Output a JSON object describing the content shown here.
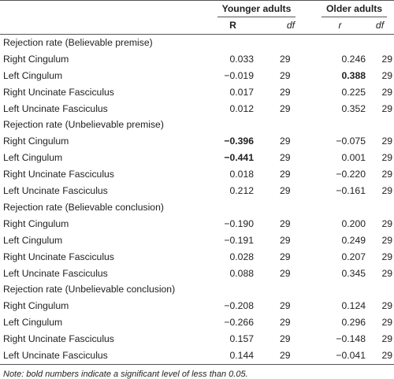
{
  "header": {
    "group_younger": "Younger adults",
    "group_older": "Older adults",
    "sub_r_upper": "R",
    "sub_df_1": "df",
    "sub_r_lower": "r",
    "sub_df_2": "df"
  },
  "sections": [
    {
      "title": "Rejection rate (Believable premise)",
      "rows": [
        {
          "label": "Right Cingulum",
          "y_r": "0.033",
          "y_df": "29",
          "o_r": "0.246",
          "o_df": "29",
          "y_bold": false,
          "o_bold": false
        },
        {
          "label": "Left Cingulum",
          "y_r": "−0.019",
          "y_df": "29",
          "o_r": "0.388",
          "o_df": "29",
          "y_bold": false,
          "o_bold": true
        },
        {
          "label": "Right Uncinate Fasciculus",
          "y_r": "0.017",
          "y_df": "29",
          "o_r": "0.225",
          "o_df": "29",
          "y_bold": false,
          "o_bold": false
        },
        {
          "label": "Left Uncinate Fasciculus",
          "y_r": "0.012",
          "y_df": "29",
          "o_r": "0.352",
          "o_df": "29",
          "y_bold": false,
          "o_bold": false
        }
      ]
    },
    {
      "title": "Rejection rate (Unbelievable premise)",
      "rows": [
        {
          "label": "Right Cingulum",
          "y_r": "−0.396",
          "y_df": "29",
          "o_r": "−0.075",
          "o_df": "29",
          "y_bold": true,
          "o_bold": false
        },
        {
          "label": "Left Cingulum",
          "y_r": "−0.441",
          "y_df": "29",
          "o_r": "0.001",
          "o_df": "29",
          "y_bold": true,
          "o_bold": false
        },
        {
          "label": "Right Uncinate Fasciculus",
          "y_r": "0.018",
          "y_df": "29",
          "o_r": "−0.220",
          "o_df": "29",
          "y_bold": false,
          "o_bold": false
        },
        {
          "label": "Left Uncinate Fasciculus",
          "y_r": "0.212",
          "y_df": "29",
          "o_r": "−0.161",
          "o_df": "29",
          "y_bold": false,
          "o_bold": false
        }
      ]
    },
    {
      "title": "Rejection rate (Believable conclusion)",
      "rows": [
        {
          "label": "Right Cingulum",
          "y_r": "−0.190",
          "y_df": "29",
          "o_r": "0.200",
          "o_df": "29",
          "y_bold": false,
          "o_bold": false
        },
        {
          "label": "Left Cingulum",
          "y_r": "−0.191",
          "y_df": "29",
          "o_r": "0.249",
          "o_df": "29",
          "y_bold": false,
          "o_bold": false
        },
        {
          "label": "Right Uncinate Fasciculus",
          "y_r": "0.028",
          "y_df": "29",
          "o_r": "0.207",
          "o_df": "29",
          "y_bold": false,
          "o_bold": false
        },
        {
          "label": "Left Uncinate Fasciculus",
          "y_r": "0.088",
          "y_df": "29",
          "o_r": "0.345",
          "o_df": "29",
          "y_bold": false,
          "o_bold": false
        }
      ]
    },
    {
      "title": "Rejection rate (Unbelievable conclusion)",
      "rows": [
        {
          "label": "Right Cingulum",
          "y_r": "−0.208",
          "y_df": "29",
          "o_r": "0.124",
          "o_df": "29",
          "y_bold": false,
          "o_bold": false
        },
        {
          "label": "Left Cingulum",
          "y_r": "−0.266",
          "y_df": "29",
          "o_r": "0.296",
          "o_df": "29",
          "y_bold": false,
          "o_bold": false
        },
        {
          "label": "Right Uncinate Fasciculus",
          "y_r": "0.157",
          "y_df": "29",
          "o_r": "−0.148",
          "o_df": "29",
          "y_bold": false,
          "o_bold": false
        },
        {
          "label": "Left Uncinate Fasciculus",
          "y_r": "0.144",
          "y_df": "29",
          "o_r": "−0.041",
          "o_df": "29",
          "y_bold": false,
          "o_bold": false
        }
      ]
    }
  ],
  "note": "Note: bold numbers indicate a significant level of less than 0.05."
}
